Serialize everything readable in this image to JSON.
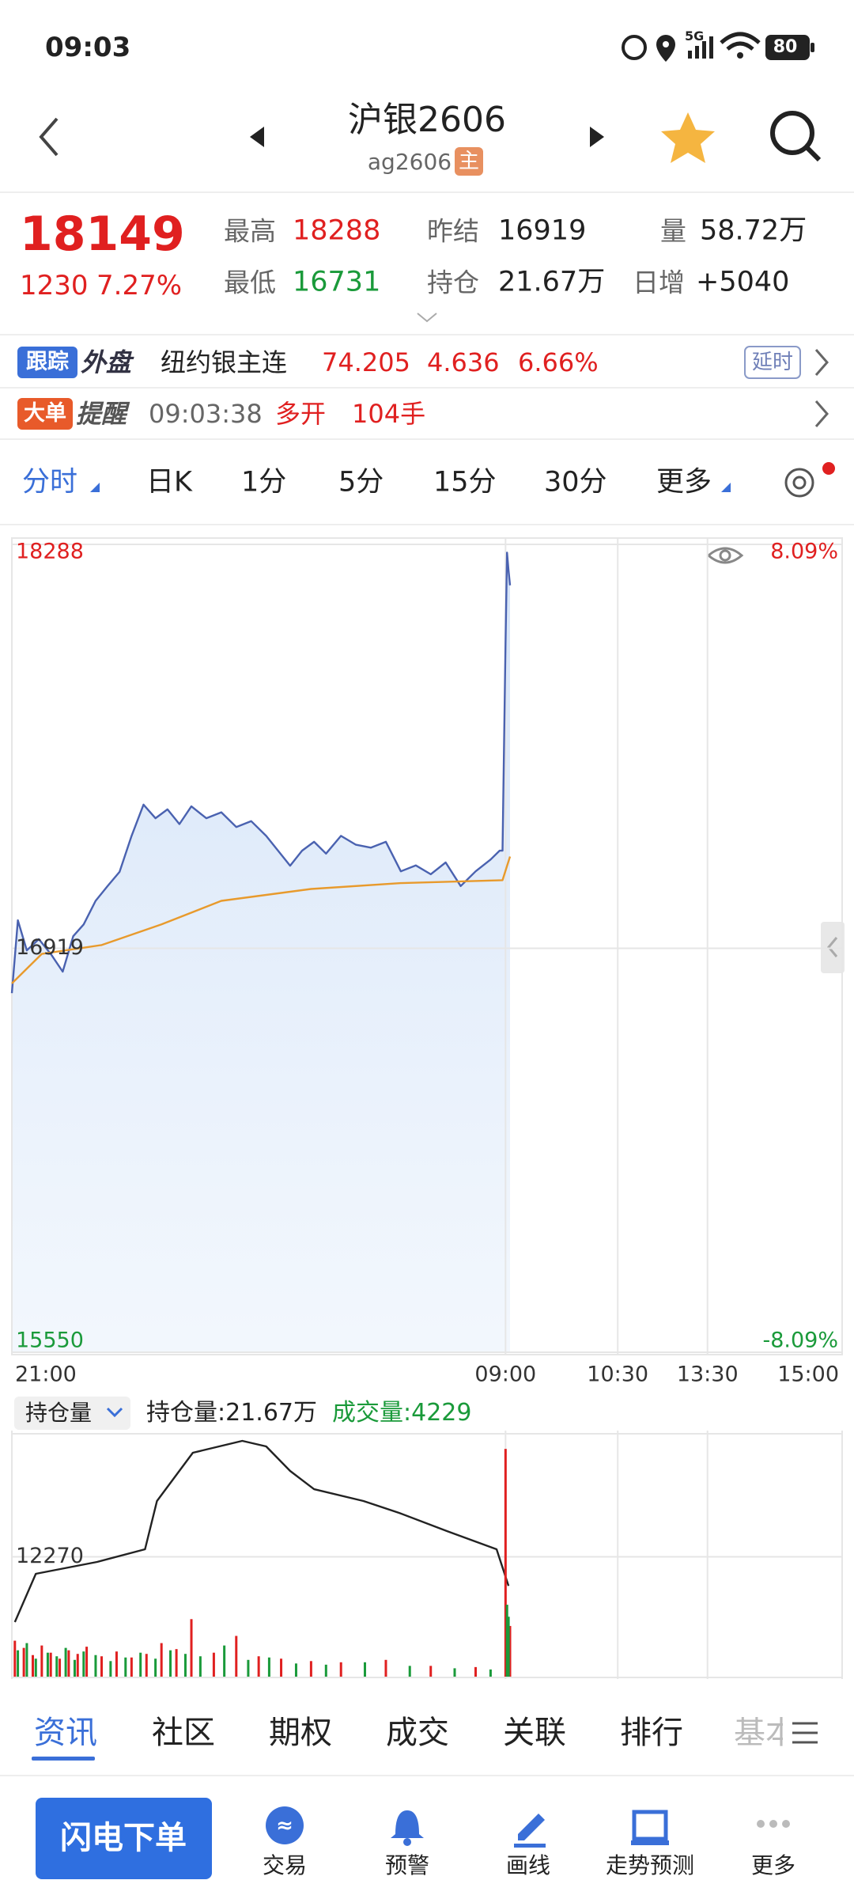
{
  "status_bar": {
    "time": "09:03",
    "network": "5G",
    "battery": "80"
  },
  "header": {
    "title": "沪银2606",
    "code": "ag2606",
    "badge": "主"
  },
  "quote": {
    "price": "18149",
    "change": "1230",
    "change_pct": "7.27%",
    "stats": [
      {
        "label": "最高",
        "value": "18288"
      },
      {
        "label": "昨结",
        "value": "16919"
      },
      {
        "label": "量",
        "value": "58.72万"
      },
      {
        "label": "最低",
        "value": "16731"
      },
      {
        "label": "持仓",
        "value": "21.67万"
      },
      {
        "label": "日增",
        "value": "+5040"
      }
    ]
  },
  "tracking": {
    "badge": "跟踪",
    "tag": "外盘",
    "name": "纽约银主连",
    "price": "74.205",
    "change": "4.636",
    "change_pct": "6.66%",
    "status": "延时"
  },
  "alert": {
    "badge": "大单",
    "tag": "提醒",
    "time": "09:03:38",
    "action": "多开",
    "volume": "104手"
  },
  "period_tabs": [
    "分时",
    "日K",
    "1分",
    "5分",
    "15分",
    "30分",
    "更多"
  ],
  "chart_data": [
    {
      "type": "line",
      "grid": true,
      "xlim": [
        0,
        555
      ],
      "xticks": [
        {
          "value": 0,
          "label": "21:00"
        },
        {
          "value": 330,
          "label": "09:00"
        },
        {
          "value": 405,
          "label": "10:30"
        },
        {
          "value": 465,
          "label": "13:30"
        },
        {
          "value": 555,
          "label": "15:00"
        }
      ],
      "ylim": [
        15550,
        18288
      ],
      "yticks": [
        15550,
        16919,
        18288
      ],
      "y2lim": [
        -8.09,
        8.09
      ],
      "y2ticks": [
        {
          "value": 8.09,
          "label": "8.09%"
        },
        {
          "value": -8.09,
          "label": "-8.09%"
        }
      ],
      "series": [
        {
          "color": "#4a62b0",
          "fill": true,
          "x": [
            0,
            4,
            10,
            18,
            26,
            34,
            41,
            48,
            56,
            64,
            72,
            80,
            88,
            96,
            104,
            112,
            120,
            130,
            140,
            150,
            160,
            170,
            186,
            194,
            202,
            210,
            220,
            230,
            240,
            250,
            260,
            270,
            280,
            290,
            300,
            310,
            320,
            326,
            328,
            330,
            331,
            332,
            333
          ],
          "values": [
            16767,
            17014,
            16912,
            16950,
            16900,
            16840,
            16960,
            17000,
            17080,
            17130,
            17178,
            17300,
            17406,
            17360,
            17390,
            17340,
            17400,
            17360,
            17380,
            17330,
            17350,
            17300,
            17199,
            17250,
            17280,
            17240,
            17300,
            17270,
            17260,
            17280,
            17180,
            17200,
            17170,
            17210,
            17130,
            17180,
            17220,
            17250,
            17250,
            17950,
            18260,
            18200,
            18149
          ]
        },
        {
          "color": "#e89a2c",
          "x": [
            0,
            20,
            60,
            100,
            140,
            200,
            260,
            328,
            333
          ],
          "values": [
            16800,
            16900,
            16930,
            17000,
            17080,
            17120,
            17140,
            17150,
            17230
          ]
        }
      ]
    },
    {
      "type": "line",
      "grid": true,
      "xlim": [
        0,
        555
      ],
      "xticks": [
        {
          "value": 0,
          "label": ""
        },
        {
          "value": 330,
          "label": ""
        },
        {
          "value": 405,
          "label": ""
        },
        {
          "value": 465,
          "label": ""
        },
        {
          "value": 555,
          "label": ""
        }
      ],
      "ylim": [
        10000,
        14540
      ],
      "yticks": [
        12270
      ],
      "y2lim": [
        0,
        20000
      ],
      "series": [
        {
          "color": "#222222",
          "type": "line",
          "x": [
            2,
            16,
            57,
            89,
            97,
            121,
            154,
            170,
            186,
            202,
            235,
            259,
            291,
            324,
            332
          ],
          "values": [
            11034,
            11948,
            12172,
            12412,
            13326,
            14240,
            14465,
            14360,
            13895,
            13550,
            13326,
            13100,
            12756,
            12412,
            11720
          ]
        },
        {
          "color": "#e02020",
          "type": "bar",
          "axis": "y2",
          "x": [
            2,
            8,
            14,
            20,
            26,
            32,
            38,
            44,
            50,
            60,
            70,
            80,
            90,
            100,
            110,
            120,
            135,
            150,
            165,
            180,
            200,
            220,
            250,
            280,
            310,
            330,
            333
          ],
          "values": [
            3000,
            2400,
            1800,
            2600,
            2000,
            1500,
            2200,
            1900,
            2500,
            1700,
            2100,
            1600,
            1900,
            2800,
            2300,
            4800,
            2000,
            3400,
            1700,
            1500,
            1300,
            1200,
            1400,
            900,
            800,
            19000,
            4229
          ]
        },
        {
          "color": "#1a9a3a",
          "type": "bar",
          "axis": "y2",
          "x": [
            4,
            10,
            16,
            24,
            30,
            36,
            42,
            48,
            56,
            66,
            76,
            86,
            96,
            106,
            116,
            126,
            142,
            158,
            172,
            190,
            210,
            236,
            266,
            296,
            320,
            331,
            332
          ],
          "values": [
            2200,
            2800,
            1500,
            2000,
            1700,
            2400,
            1400,
            2100,
            1800,
            1300,
            1600,
            2000,
            1500,
            2200,
            1900,
            1700,
            2600,
            1400,
            1600,
            1100,
            1000,
            1200,
            900,
            700,
            600,
            6000,
            5000
          ]
        }
      ]
    }
  ],
  "sub_tabs": {
    "selector": "持仓量",
    "open_interest": "持仓量:21.67万",
    "volume": "成交量:4229"
  },
  "bottom_tabs": [
    "资讯",
    "社区",
    "期权",
    "成交",
    "关联",
    "排行",
    "基本"
  ],
  "bottom_nav": {
    "button": "闪电下单",
    "items": [
      "交易",
      "预警",
      "画线",
      "走势预测",
      "更多"
    ]
  }
}
